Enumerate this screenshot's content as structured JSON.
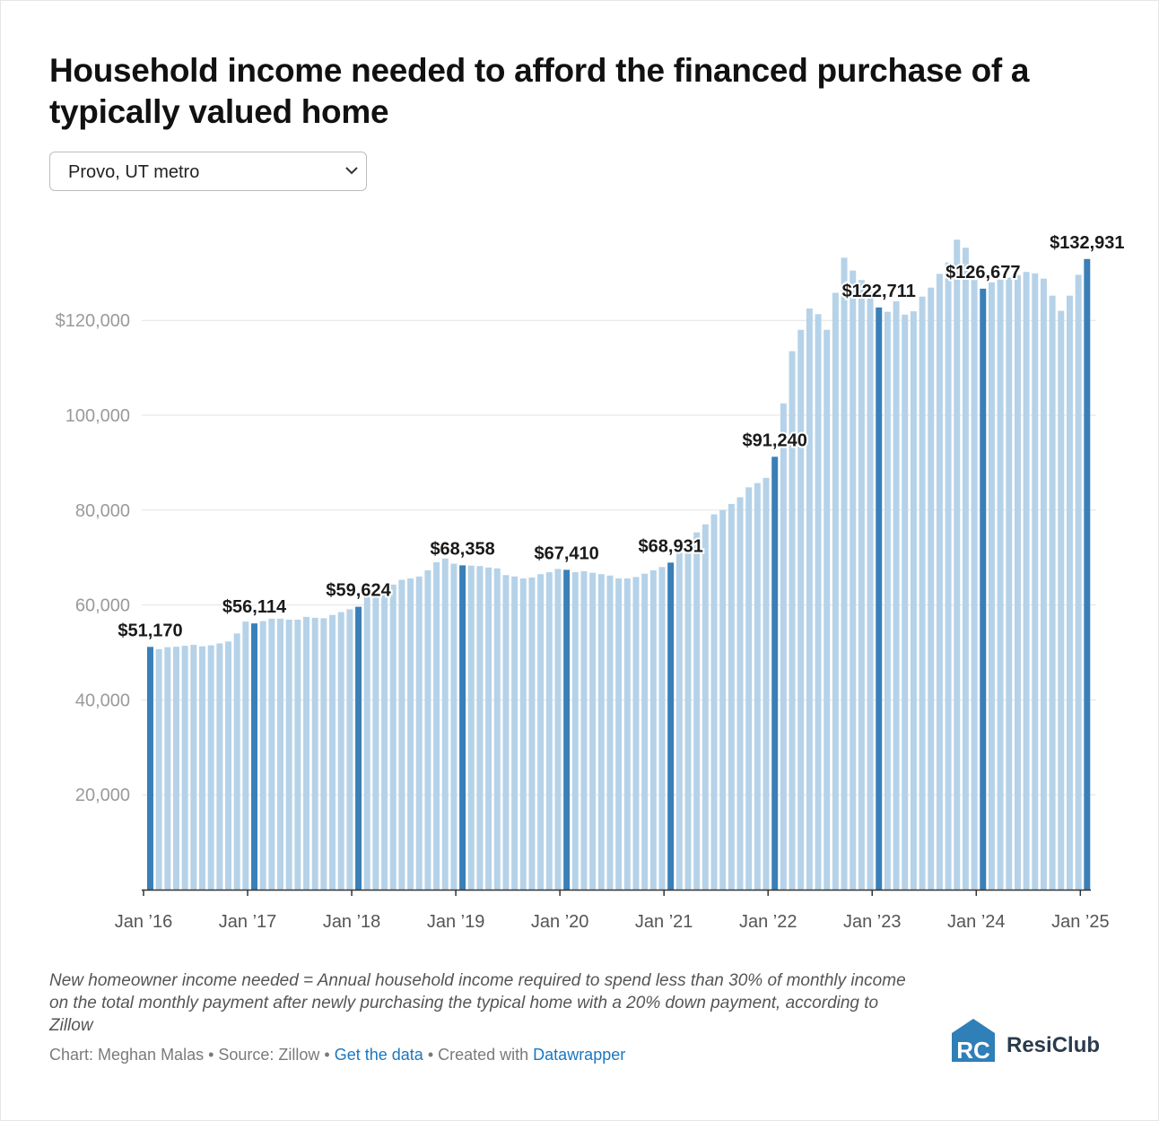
{
  "title": "Household income needed to afford the financed purchase of a typically valued home",
  "dropdown": {
    "selected": "Provo, UT metro"
  },
  "chart_data": {
    "type": "bar",
    "title": "Household income needed to afford the financed purchase of a typically valued home",
    "xlabel": "",
    "ylabel": "",
    "ylim": [
      0,
      140000
    ],
    "y_ticks": [
      {
        "value": 20000,
        "label": "20,000"
      },
      {
        "value": 40000,
        "label": "40,000"
      },
      {
        "value": 60000,
        "label": "60,000"
      },
      {
        "value": 80000,
        "label": "80,000"
      },
      {
        "value": 100000,
        "label": "100,000"
      },
      {
        "value": 120000,
        "label": "$120,000"
      }
    ],
    "x_ticks": [
      {
        "index": 0,
        "label": "Jan ’16"
      },
      {
        "index": 12,
        "label": "Jan ’17"
      },
      {
        "index": 24,
        "label": "Jan ’18"
      },
      {
        "index": 36,
        "label": "Jan ’19"
      },
      {
        "index": 48,
        "label": "Jan ’20"
      },
      {
        "index": 60,
        "label": "Jan ’21"
      },
      {
        "index": 72,
        "label": "Jan ’22"
      },
      {
        "index": 84,
        "label": "Jan ’23"
      },
      {
        "index": 96,
        "label": "Jan ’24"
      },
      {
        "index": 108,
        "label": "Jan ’25"
      }
    ],
    "start_month": "Jan 2016",
    "colors": {
      "bar": "#b5d2e8",
      "highlight": "#3a7fb7",
      "gridline": "#e3e3e3",
      "axis": "#333333"
    },
    "highlight_indices": [
      0,
      12,
      24,
      36,
      48,
      60,
      72,
      84,
      96,
      108
    ],
    "annotations": [
      {
        "index": 0,
        "label": "$51,170"
      },
      {
        "index": 12,
        "label": "$56,114"
      },
      {
        "index": 24,
        "label": "$59,624"
      },
      {
        "index": 36,
        "label": "$68,358"
      },
      {
        "index": 48,
        "label": "$67,410"
      },
      {
        "index": 60,
        "label": "$68,931"
      },
      {
        "index": 72,
        "label": "$91,240"
      },
      {
        "index": 84,
        "label": "$122,711"
      },
      {
        "index": 96,
        "label": "$126,677"
      },
      {
        "index": 108,
        "label": "$132,931"
      }
    ],
    "values": [
      51170,
      50700,
      51100,
      51200,
      51400,
      51600,
      51300,
      51500,
      51900,
      52300,
      54000,
      56500,
      56114,
      56600,
      57100,
      57100,
      56900,
      56900,
      57500,
      57300,
      57200,
      57900,
      58500,
      59100,
      59624,
      61800,
      62500,
      63300,
      64300,
      65300,
      65600,
      66000,
      67300,
      69000,
      69800,
      68700,
      68358,
      68300,
      68200,
      67900,
      67700,
      66300,
      66000,
      65600,
      65800,
      66500,
      66900,
      67600,
      67410,
      66900,
      67100,
      66800,
      66500,
      66200,
      65600,
      65600,
      65900,
      66600,
      67300,
      68000,
      68931,
      71000,
      73300,
      75300,
      77000,
      79100,
      80000,
      81300,
      82700,
      84800,
      85700,
      86800,
      91240,
      102500,
      113500,
      118000,
      122500,
      121300,
      118000,
      125800,
      133200,
      130500,
      128500,
      126000,
      122711,
      121800,
      124000,
      121200,
      121900,
      125000,
      126900,
      129800,
      132200,
      137000,
      135300,
      128500,
      126677,
      128000,
      128600,
      129000,
      129500,
      130200,
      129900,
      128800,
      125200,
      122000,
      125200,
      129600,
      132931
    ]
  },
  "notes": "New homeowner income needed = Annual household income required to spend less than 30% of monthly income on the total monthly payment after newly purchasing the typical home with a 20% down payment, according to Zillow",
  "credits": {
    "prefix": "Chart: Meghan Malas • Source: Zillow • ",
    "get_data": "Get the data",
    "middle": " • Created with ",
    "datawrapper": "Datawrapper"
  },
  "logo": {
    "monogram": "RC",
    "text": "ResiClub"
  }
}
